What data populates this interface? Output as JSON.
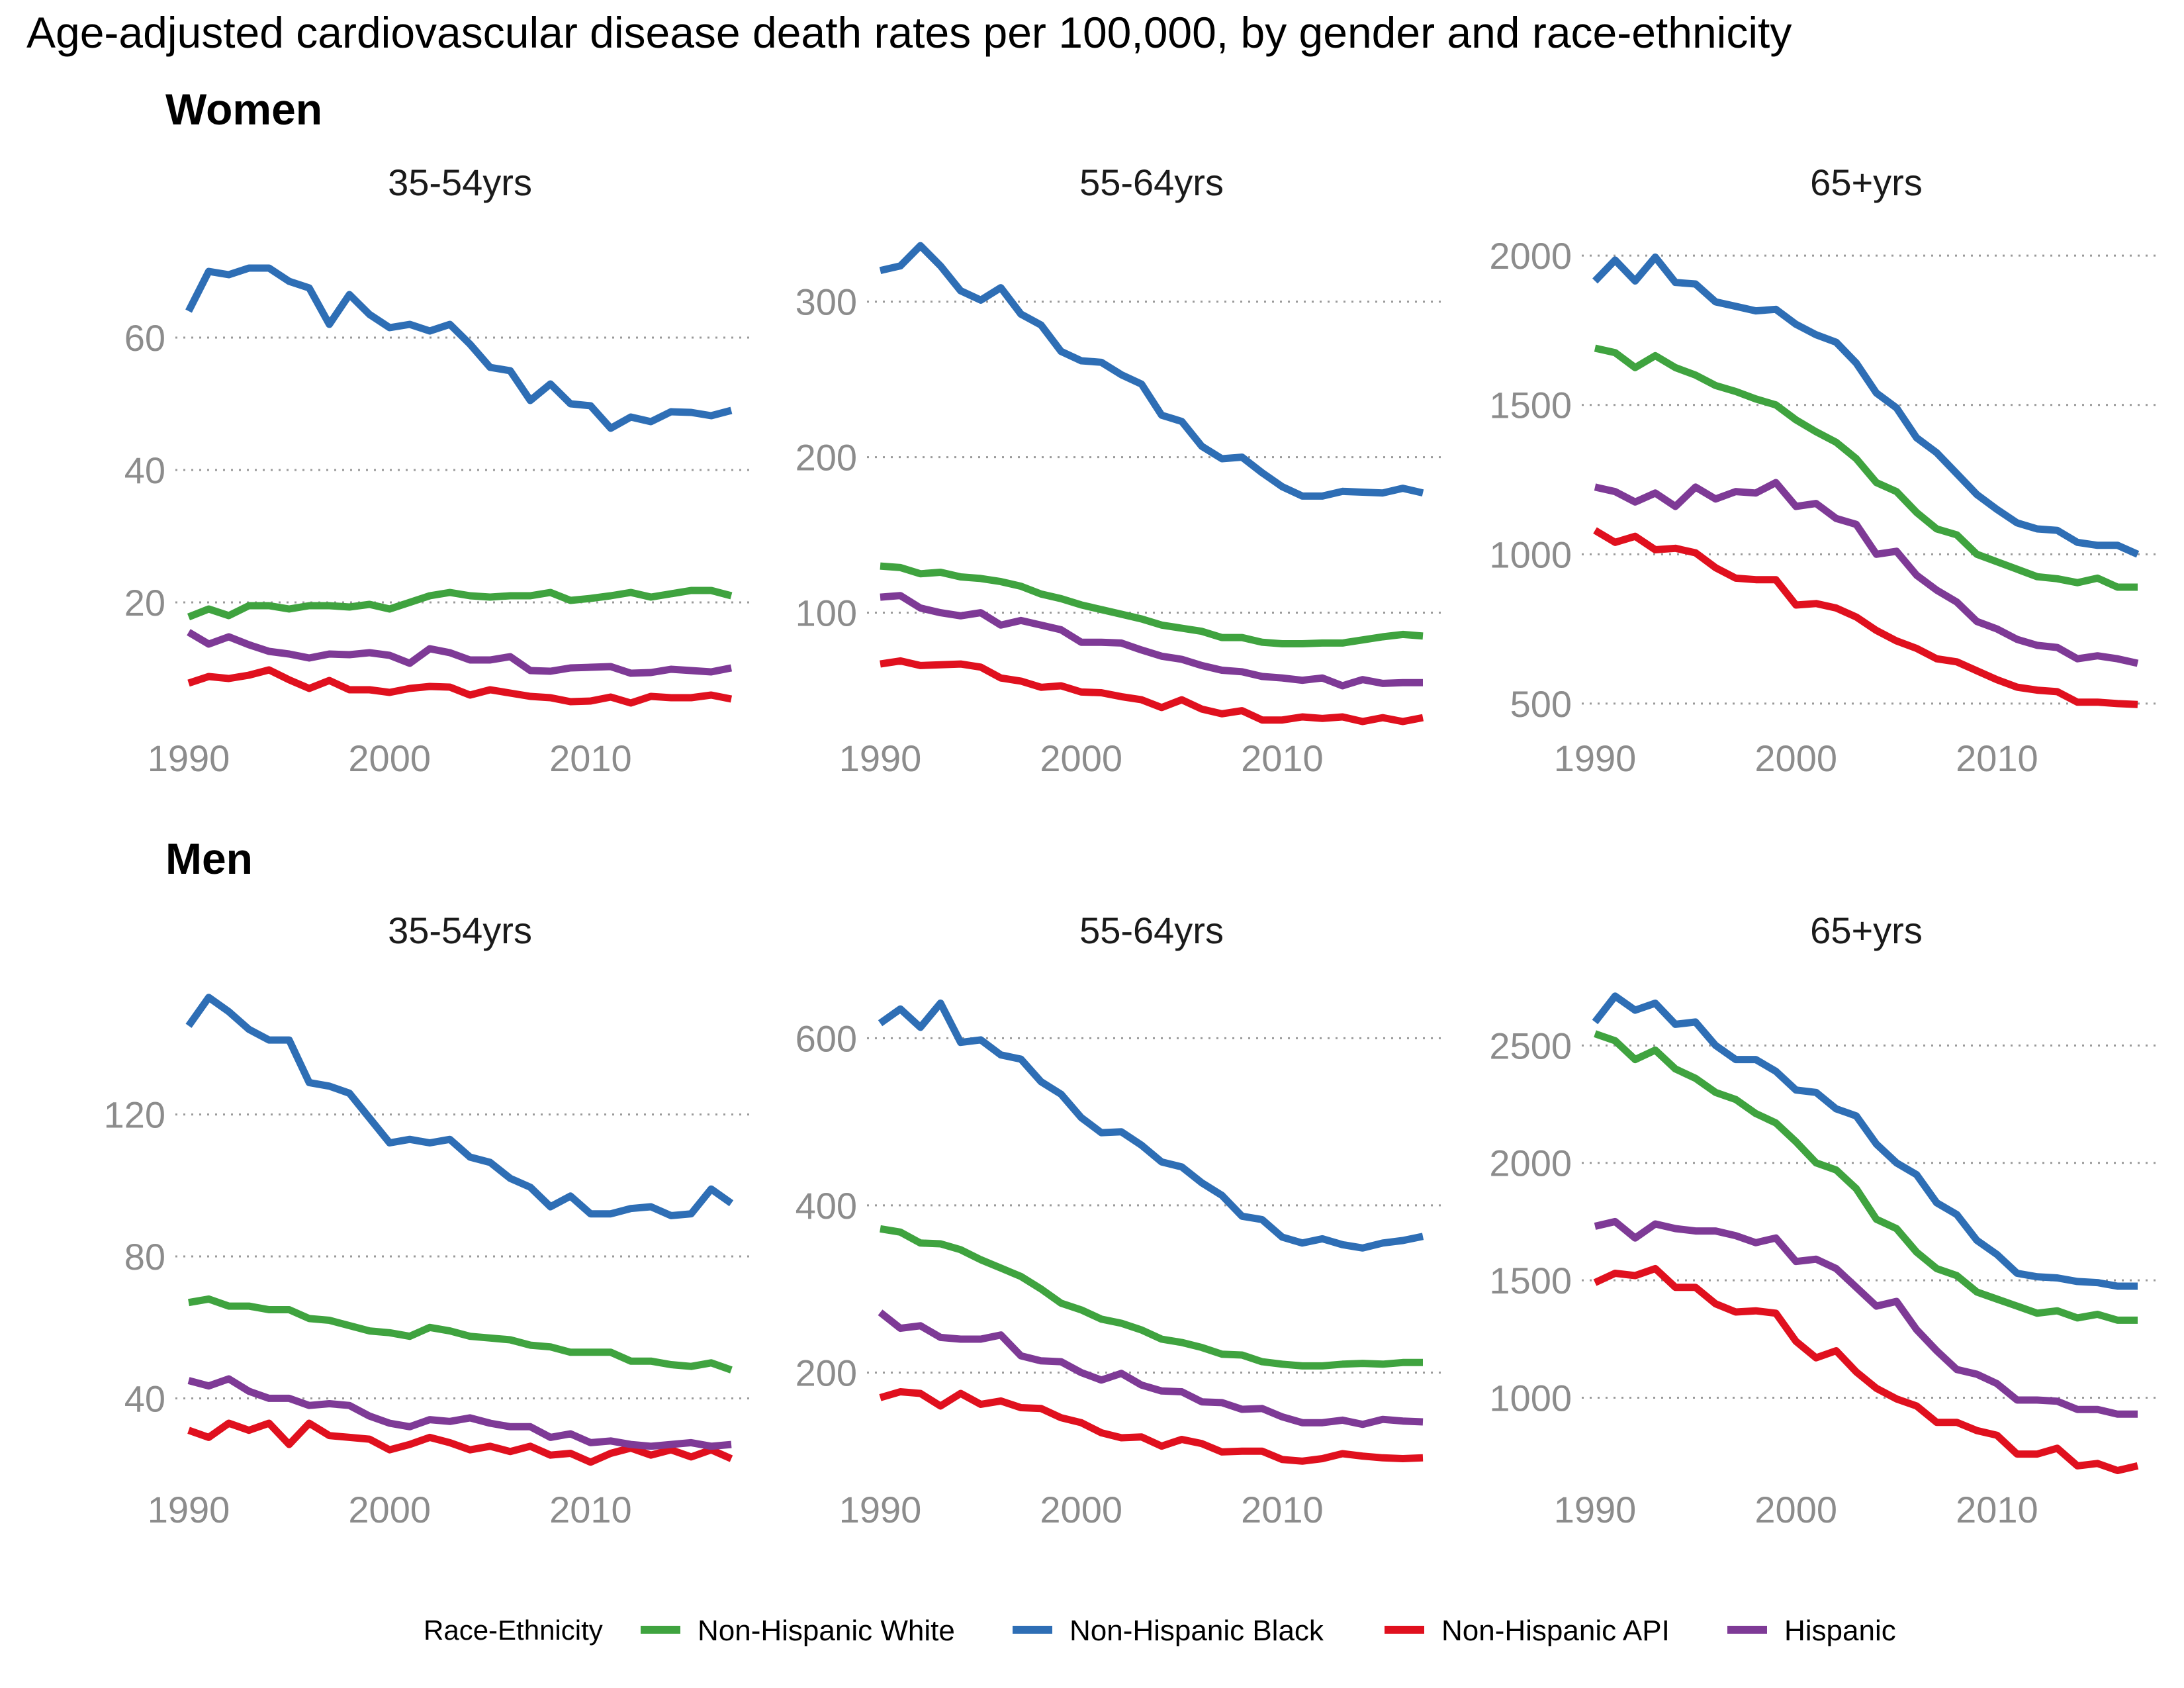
{
  "title": "Age-adjusted cardiovascular disease death rates per 100,000, by gender and race-ethnicity",
  "legend": {
    "title": "Race-Ethnicity",
    "items": [
      {
        "label": "Non-Hispanic White",
        "color": "#3fa33f"
      },
      {
        "label": "Non-Hispanic Black",
        "color": "#2e6eb5"
      },
      {
        "label": "Non-Hispanic API",
        "color": "#e0101e"
      },
      {
        "label": "Hispanic",
        "color": "#7e3a96"
      }
    ]
  },
  "groups": [
    {
      "label": "Women"
    },
    {
      "label": "Men"
    }
  ],
  "chart_data": [
    {
      "type": "line",
      "group": "Women",
      "panel": "35-54yrs",
      "x": [
        1990,
        1991,
        1992,
        1993,
        1994,
        1995,
        1996,
        1997,
        1998,
        1999,
        2000,
        2001,
        2002,
        2003,
        2004,
        2005,
        2006,
        2007,
        2008,
        2009,
        2010,
        2011,
        2012,
        2013,
        2014,
        2015,
        2016,
        2017
      ],
      "xticks": [
        1990,
        2000,
        2010
      ],
      "yticks": [
        20,
        40,
        60
      ],
      "ylim": [
        2,
        76
      ],
      "series": [
        {
          "name": "Non-Hispanic White",
          "color": "#3fa33f",
          "values": [
            17.8,
            19,
            18,
            19.5,
            19.5,
            19,
            19.5,
            19.5,
            19.3,
            19.7,
            19,
            20,
            21,
            21.5,
            21,
            20.8,
            21,
            21,
            21.5,
            20.3,
            20.6,
            21,
            21.5,
            20.8,
            21.3,
            21.8,
            21.8,
            21
          ]
        },
        {
          "name": "Non-Hispanic Black",
          "color": "#2e6eb5",
          "values": [
            64,
            70,
            69.5,
            70.5,
            70.5,
            68.5,
            67.5,
            62,
            66.5,
            63.5,
            61.5,
            62,
            61,
            62,
            59,
            55.5,
            55,
            50.5,
            53,
            50,
            49.7,
            46.3,
            48,
            47.3,
            48.8,
            48.7,
            48.2,
            49
          ]
        },
        {
          "name": "Non-Hispanic API",
          "color": "#e0101e",
          "values": [
            7.8,
            8.8,
            8.5,
            9,
            9.8,
            8.3,
            7,
            8.2,
            6.8,
            6.8,
            6.4,
            7,
            7.3,
            7.2,
            6,
            6.8,
            6.3,
            5.8,
            5.6,
            5,
            5.1,
            5.7,
            4.8,
            5.8,
            5.6,
            5.6,
            6,
            5.4
          ]
        },
        {
          "name": "Hispanic",
          "color": "#7e3a96",
          "values": [
            15.5,
            13.7,
            14.8,
            13.6,
            12.6,
            12.2,
            11.6,
            12.2,
            12.1,
            12.4,
            12,
            10.8,
            13,
            12.4,
            11.3,
            11.3,
            11.8,
            9.7,
            9.6,
            10.1,
            10.2,
            10.3,
            9.3,
            9.4,
            9.9,
            9.7,
            9.5,
            10.1
          ]
        }
      ]
    },
    {
      "type": "line",
      "group": "Women",
      "panel": "55-64yrs",
      "x": [
        1990,
        1991,
        1992,
        1993,
        1994,
        1995,
        1996,
        1997,
        1998,
        1999,
        2000,
        2001,
        2002,
        2003,
        2004,
        2005,
        2006,
        2007,
        2008,
        2009,
        2010,
        2011,
        2012,
        2013,
        2014,
        2015,
        2016,
        2017
      ],
      "xticks": [
        1990,
        2000,
        2010
      ],
      "yticks": [
        100,
        200,
        300
      ],
      "ylim": [
        30,
        345
      ],
      "series": [
        {
          "name": "Non-Hispanic White",
          "color": "#3fa33f",
          "values": [
            130,
            129,
            125,
            126,
            123,
            122,
            120,
            117,
            112,
            109,
            105,
            102,
            99,
            96,
            92,
            90,
            88,
            84,
            84,
            81,
            80,
            80,
            80.5,
            80.5,
            82.5,
            84.5,
            86,
            85
          ]
        },
        {
          "name": "Non-Hispanic Black",
          "color": "#2e6eb5",
          "values": [
            320,
            323,
            336,
            323,
            307,
            301,
            309,
            292,
            285,
            268,
            262,
            261,
            253,
            247,
            227,
            223,
            207,
            199,
            200,
            190,
            181,
            175,
            175,
            178,
            177.5,
            177,
            180,
            177
          ]
        },
        {
          "name": "Non-Hispanic API",
          "color": "#e0101e",
          "values": [
            67,
            69,
            66,
            66.5,
            67,
            65,
            58,
            56,
            52,
            53,
            49,
            48.5,
            46,
            44,
            39,
            44,
            38,
            35,
            37,
            31,
            31,
            33,
            32,
            33,
            30,
            32.5,
            30,
            32.5
          ]
        },
        {
          "name": "Hispanic",
          "color": "#7e3a96",
          "values": [
            110,
            111,
            103,
            100,
            98,
            100,
            92,
            95,
            92,
            89,
            81,
            81,
            80.5,
            76,
            72,
            70,
            66,
            63,
            62,
            59,
            58,
            56.5,
            58,
            53,
            57,
            54.5,
            55,
            55
          ]
        }
      ]
    },
    {
      "type": "line",
      "group": "Women",
      "panel": "65+yrs",
      "x": [
        1990,
        1991,
        1992,
        1993,
        1994,
        1995,
        1996,
        1997,
        1998,
        1999,
        2000,
        2001,
        2002,
        2003,
        2004,
        2005,
        2006,
        2007,
        2008,
        2009,
        2010,
        2011,
        2012,
        2013,
        2014,
        2015,
        2016,
        2017
      ],
      "xticks": [
        1990,
        2000,
        2010
      ],
      "yticks": [
        500,
        1000,
        1500,
        2000
      ],
      "ylim": [
        440,
        2080
      ],
      "series": [
        {
          "name": "Non-Hispanic White",
          "color": "#3fa33f",
          "values": [
            1690,
            1675,
            1625,
            1665,
            1625,
            1600,
            1565,
            1545,
            1520,
            1500,
            1450,
            1410,
            1375,
            1320,
            1240,
            1210,
            1140,
            1085,
            1065,
            1000,
            975,
            950,
            925,
            918,
            905,
            920,
            890,
            890
          ]
        },
        {
          "name": "Non-Hispanic Black",
          "color": "#2e6eb5",
          "values": [
            1915,
            1985,
            1915,
            1995,
            1910,
            1905,
            1845,
            1830,
            1815,
            1820,
            1770,
            1735,
            1710,
            1640,
            1540,
            1490,
            1390,
            1340,
            1270,
            1200,
            1150,
            1105,
            1085,
            1080,
            1040,
            1030,
            1030,
            1000
          ]
        },
        {
          "name": "Non-Hispanic API",
          "color": "#e0101e",
          "values": [
            1080,
            1040,
            1060,
            1015,
            1020,
            1005,
            955,
            920,
            915,
            915,
            830,
            835,
            820,
            790,
            745,
            710,
            685,
            650,
            640,
            610,
            580,
            555,
            545,
            540,
            505,
            505,
            500,
            497
          ]
        },
        {
          "name": "Hispanic",
          "color": "#7e3a96",
          "values": [
            1225,
            1210,
            1175,
            1205,
            1160,
            1225,
            1185,
            1210,
            1205,
            1240,
            1160,
            1170,
            1120,
            1100,
            1000,
            1010,
            930,
            880,
            840,
            775,
            750,
            715,
            695,
            688,
            650,
            660,
            650,
            635
          ]
        }
      ]
    },
    {
      "type": "line",
      "group": "Men",
      "panel": "35-54yrs",
      "x": [
        1990,
        1991,
        1992,
        1993,
        1994,
        1995,
        1996,
        1997,
        1998,
        1999,
        2000,
        2001,
        2002,
        2003,
        2004,
        2005,
        2006,
        2007,
        2008,
        2009,
        2010,
        2011,
        2012,
        2013,
        2014,
        2015,
        2016,
        2017
      ],
      "xticks": [
        1990,
        2000,
        2010
      ],
      "yticks": [
        40,
        80,
        120
      ],
      "ylim": [
        19,
        158
      ],
      "series": [
        {
          "name": "Non-Hispanic White",
          "color": "#3fa33f",
          "values": [
            67,
            68,
            66,
            66,
            65,
            65,
            62.5,
            62,
            60.5,
            59,
            58.5,
            57.5,
            60,
            59,
            57.5,
            57,
            56.5,
            55,
            54.5,
            53,
            53,
            53,
            50.5,
            50.5,
            49.5,
            49,
            50,
            48
          ]
        },
        {
          "name": "Non-Hispanic Black",
          "color": "#2e6eb5",
          "values": [
            145,
            153,
            149,
            144,
            141,
            141,
            129,
            128,
            126,
            119,
            112,
            113,
            112,
            113,
            108,
            106.5,
            102,
            99.5,
            94,
            97,
            92,
            92,
            93.5,
            94,
            91.5,
            92,
            99,
            95
          ]
        },
        {
          "name": "Non-Hispanic API",
          "color": "#e0101e",
          "values": [
            31,
            29,
            33,
            31,
            33,
            27,
            33,
            29.5,
            29,
            28.5,
            25.5,
            27,
            29,
            27.5,
            25.5,
            26.5,
            25,
            26.5,
            24,
            24.5,
            22,
            24.5,
            26,
            24,
            25.5,
            23.5,
            25.5,
            23
          ]
        },
        {
          "name": "Hispanic",
          "color": "#7e3a96",
          "values": [
            45,
            43.5,
            45.5,
            42,
            40,
            40,
            38,
            38.5,
            38,
            35,
            33,
            32,
            34,
            33.5,
            34.5,
            33,
            32,
            32,
            29,
            30,
            27.5,
            28,
            27,
            26.5,
            27,
            27.5,
            26.5,
            27
          ]
        }
      ]
    },
    {
      "type": "line",
      "group": "Men",
      "panel": "55-64yrs",
      "x": [
        1990,
        1991,
        1992,
        1993,
        1994,
        1995,
        1996,
        1997,
        1998,
        1999,
        2000,
        2001,
        2002,
        2003,
        2004,
        2005,
        2006,
        2007,
        2008,
        2009,
        2010,
        2011,
        2012,
        2013,
        2014,
        2015,
        2016,
        2017
      ],
      "xticks": [
        1990,
        2000,
        2010
      ],
      "yticks": [
        200,
        400,
        600
      ],
      "ylim": [
        80,
        670
      ],
      "series": [
        {
          "name": "Non-Hispanic White",
          "color": "#3fa33f",
          "values": [
            372,
            368,
            355,
            354,
            347,
            335,
            325,
            315,
            300,
            283,
            275,
            264,
            259,
            251,
            240,
            236,
            230,
            222,
            221,
            213,
            210,
            208,
            208,
            210,
            211,
            210,
            212,
            212
          ]
        },
        {
          "name": "Non-Hispanic Black",
          "color": "#2e6eb5",
          "values": [
            618,
            635,
            613,
            642,
            595,
            598,
            580,
            575,
            548,
            533,
            505,
            487,
            488,
            472,
            452,
            446,
            427,
            412,
            387,
            383,
            362,
            355,
            360,
            353,
            349,
            355,
            358,
            363
          ]
        },
        {
          "name": "Non-Hispanic API",
          "color": "#e0101e",
          "values": [
            170,
            177,
            175,
            160,
            175,
            162,
            166,
            158,
            157,
            146,
            140,
            128,
            122,
            123,
            112,
            120,
            115,
            105,
            106,
            106,
            96,
            94,
            97,
            103,
            100,
            98,
            97,
            98
          ]
        },
        {
          "name": "Hispanic",
          "color": "#7e3a96",
          "values": [
            272,
            253,
            256,
            242,
            240,
            240,
            245,
            220,
            214,
            213,
            200,
            191,
            199,
            185,
            178,
            177,
            165,
            164,
            156,
            157,
            147,
            140,
            140,
            143,
            138,
            144,
            142,
            141
          ]
        }
      ]
    },
    {
      "type": "line",
      "group": "Men",
      "panel": "65+yrs",
      "x": [
        1990,
        1991,
        1992,
        1993,
        1994,
        1995,
        1996,
        1997,
        1998,
        1999,
        2000,
        2001,
        2002,
        2003,
        2004,
        2005,
        2006,
        2007,
        2008,
        2009,
        2010,
        2011,
        2012,
        2013,
        2014,
        2015,
        2016,
        2017
      ],
      "xticks": [
        1990,
        2000,
        2010
      ],
      "yticks": [
        1000,
        1500,
        2000,
        2500
      ],
      "ylim": [
        680,
        2780
      ],
      "series": [
        {
          "name": "Non-Hispanic White",
          "color": "#3fa33f",
          "values": [
            2550,
            2520,
            2440,
            2480,
            2400,
            2360,
            2300,
            2270,
            2210,
            2170,
            2090,
            2000,
            1970,
            1890,
            1760,
            1720,
            1620,
            1550,
            1520,
            1450,
            1420,
            1390,
            1360,
            1370,
            1340,
            1355,
            1330,
            1330
          ]
        },
        {
          "name": "Non-Hispanic Black",
          "color": "#2e6eb5",
          "values": [
            2600,
            2710,
            2650,
            2680,
            2590,
            2600,
            2500,
            2440,
            2440,
            2390,
            2310,
            2300,
            2230,
            2200,
            2080,
            2000,
            1950,
            1830,
            1780,
            1670,
            1610,
            1530,
            1515,
            1510,
            1495,
            1490,
            1475,
            1475
          ]
        },
        {
          "name": "Non-Hispanic API",
          "color": "#e0101e",
          "values": [
            1490,
            1530,
            1520,
            1550,
            1470,
            1470,
            1400,
            1365,
            1370,
            1360,
            1240,
            1170,
            1200,
            1110,
            1040,
            995,
            965,
            895,
            895,
            860,
            840,
            760,
            760,
            785,
            710,
            720,
            690,
            710
          ]
        },
        {
          "name": "Hispanic",
          "color": "#7e3a96",
          "values": [
            1730,
            1750,
            1680,
            1740,
            1720,
            1710,
            1710,
            1690,
            1660,
            1680,
            1580,
            1590,
            1550,
            1470,
            1390,
            1410,
            1290,
            1200,
            1120,
            1100,
            1060,
            990,
            990,
            985,
            950,
            950,
            930,
            930
          ]
        }
      ]
    }
  ]
}
